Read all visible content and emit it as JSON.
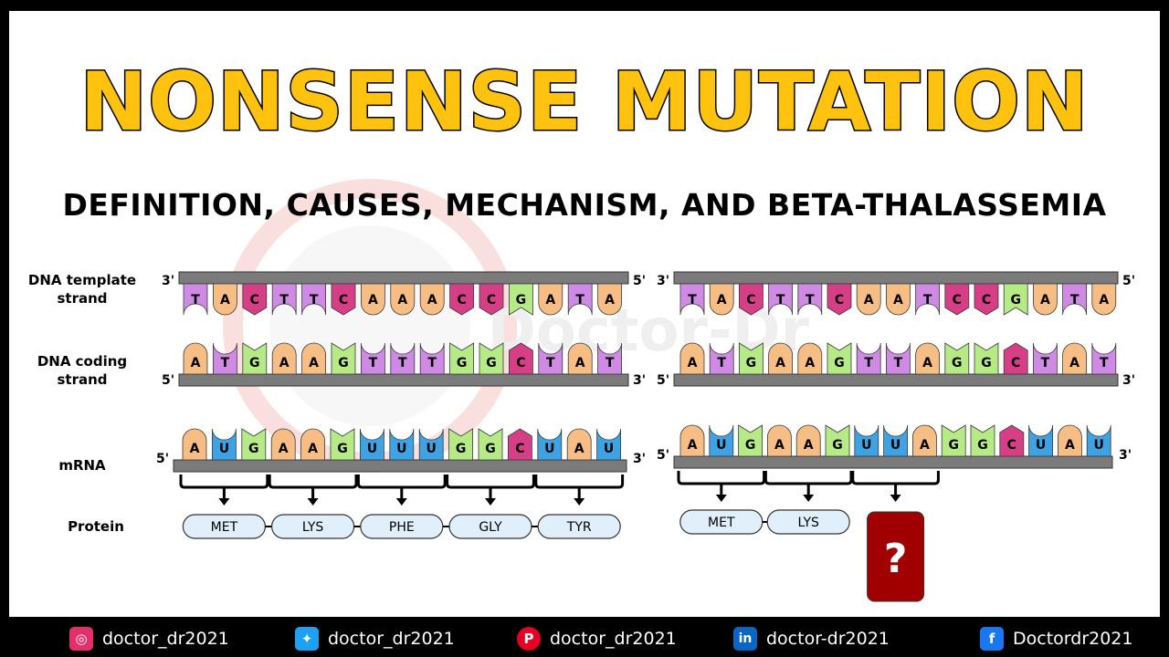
{
  "title": "NONSENSE MUTATION",
  "subtitle": "DEFINITION, CAUSES, MECHANISM, AND BETA-THALASSEMIA",
  "watermark_text": "Doctor-Dr",
  "row_labels": {
    "template": "DNA template strand",
    "coding": "DNA coding strand",
    "mrna": "mRNA",
    "protein": "Protein"
  },
  "ends": {
    "three": "3'",
    "five": "5'"
  },
  "colors": {
    "A": "#f6be85",
    "T": "#cf8ae3",
    "C": "#d63f86",
    "G": "#b5ea86",
    "U": "#3ea2e3",
    "bar": "#7b7b7b",
    "pill": "#e1effb",
    "unknown": "#a00000"
  },
  "normal": {
    "template": [
      "T",
      "A",
      "C",
      "T",
      "T",
      "C",
      "A",
      "A",
      "A",
      "C",
      "C",
      "G",
      "A",
      "T",
      "A"
    ],
    "coding": [
      "A",
      "T",
      "G",
      "A",
      "A",
      "G",
      "T",
      "T",
      "T",
      "G",
      "G",
      "C",
      "T",
      "A",
      "T"
    ],
    "mrna": [
      "A",
      "U",
      "G",
      "A",
      "A",
      "G",
      "U",
      "U",
      "U",
      "G",
      "G",
      "C",
      "U",
      "A",
      "U"
    ],
    "protein": [
      "MET",
      "LYS",
      "PHE",
      "GLY",
      "TYR"
    ]
  },
  "mutant": {
    "template": [
      "T",
      "A",
      "C",
      "T",
      "T",
      "C",
      "A",
      "A",
      "T",
      "C",
      "C",
      "G",
      "A",
      "T",
      "A"
    ],
    "coding": [
      "A",
      "T",
      "G",
      "A",
      "A",
      "G",
      "T",
      "T",
      "A",
      "G",
      "G",
      "C",
      "T",
      "A",
      "T"
    ],
    "mrna": [
      "A",
      "U",
      "G",
      "A",
      "A",
      "G",
      "U",
      "U",
      "A",
      "G",
      "G",
      "C",
      "U",
      "A",
      "U"
    ],
    "protein": [
      "MET",
      "LYS"
    ],
    "unknown": "?"
  },
  "social": [
    {
      "icon": "instagram-icon",
      "color": "#e1306c",
      "glyph": "◎",
      "handle": "doctor_dr2021"
    },
    {
      "icon": "twitter-icon",
      "color": "#1da1f2",
      "glyph": "✦",
      "handle": "doctor_dr2021"
    },
    {
      "icon": "pinterest-icon",
      "color": "#e60023",
      "glyph": "P",
      "handle": "doctor_dr2021"
    },
    {
      "icon": "linkedin-icon",
      "color": "#0a66c2",
      "glyph": "in",
      "handle": "doctor-dr2021"
    },
    {
      "icon": "facebook-icon",
      "color": "#1877f2",
      "glyph": "f",
      "handle": "Doctordr2021"
    }
  ]
}
